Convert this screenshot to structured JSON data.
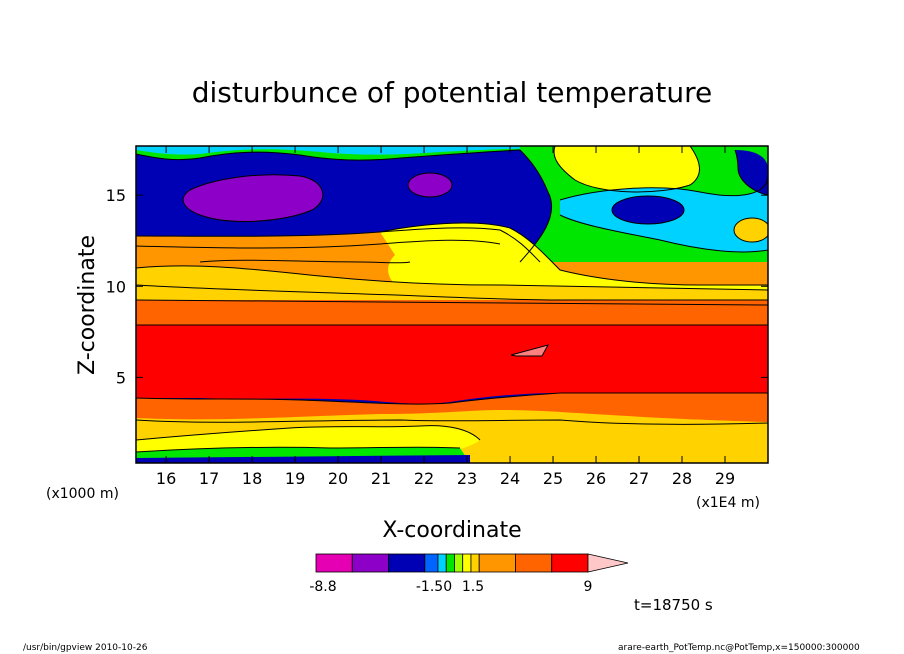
{
  "chart_data": {
    "type": "heatmap",
    "title": "disturbunce of potential temperature",
    "xlabel": "X-coordinate",
    "ylabel": "Z-coordinate",
    "xlim": [
      15.3,
      30.0
    ],
    "ylim": [
      0.3,
      17.7
    ],
    "x_ticks": [
      "16",
      "17",
      "18",
      "19",
      "20",
      "21",
      "22",
      "23",
      "24",
      "25",
      "26",
      "27",
      "28",
      "29"
    ],
    "x_tick_values": [
      16,
      17,
      18,
      19,
      20,
      21,
      22,
      23,
      24,
      25,
      26,
      27,
      28,
      29
    ],
    "y_ticks": [
      "5",
      "10",
      "15"
    ],
    "y_tick_values": [
      5,
      10,
      15
    ],
    "x_unit_label": "(x1E4 m)",
    "y_unit_label": "(x1000 m)",
    "time_label": "t=18750 s",
    "colorbar": {
      "colors": [
        "#e600b4",
        "#8c00c8",
        "#0000b4",
        "#0064ff",
        "#00d2ff",
        "#00e600",
        "#a0ff00",
        "#ffff00",
        "#ffd200",
        "#ff9600",
        "#ff6400",
        "#ff0000",
        "#ff8080",
        "#ffc8c8"
      ],
      "tick_labels": [
        "-8.8",
        "-1.50",
        "1.5",
        "9"
      ]
    },
    "layers": [
      {
        "z_from": 0.3,
        "z_to": 0.6,
        "level": "-1.5",
        "color": "#0000b4"
      },
      {
        "z_from": 0.6,
        "z_to": 1.2,
        "level": "-0.3",
        "color": "#00e600"
      },
      {
        "z_from": 1.2,
        "z_to": 2.0,
        "level": "0.6",
        "color": "#ffff00"
      },
      {
        "z_from": 2.0,
        "z_to": 2.8,
        "level": "1.5",
        "color": "#ffd200"
      },
      {
        "z_from": 2.8,
        "z_to": 4.0,
        "level": "3",
        "color": "#ff6400"
      },
      {
        "z_from": 4.0,
        "z_to": 7.8,
        "level": "6",
        "color": "#ff0000"
      },
      {
        "z_from": 7.8,
        "z_to": 9.4,
        "level": "3",
        "color": "#ff6400"
      },
      {
        "z_from": 9.4,
        "z_to": 10.8,
        "level": "1.5",
        "color": "#ffd200"
      },
      {
        "z_from": 10.8,
        "z_to": 12.5,
        "level": "3",
        "color": "#ff6400"
      },
      {
        "z_from": 12.5,
        "z_to": 13.0,
        "level": "0.6",
        "color": "#ffff00"
      },
      {
        "z_from": 13.0,
        "z_to": 17.1,
        "level": "-1.5",
        "color": "#0000b4"
      },
      {
        "z_from": 17.1,
        "z_to": 17.7,
        "level": "-0.3",
        "color": "#00e600"
      }
    ],
    "features": [
      {
        "name": "purple-low-left",
        "x": 19.0,
        "z": 15.2,
        "level": "-3",
        "color": "#8c00c8"
      },
      {
        "name": "purple-low-center",
        "x": 22.0,
        "z": 15.7,
        "level": "-3",
        "color": "#8c00c8"
      },
      {
        "name": "cyan-region-right",
        "x": 27.0,
        "z": 14.8,
        "level": "-0.6",
        "color": "#00d2ff"
      },
      {
        "name": "blue-low-right",
        "x": 27.3,
        "z": 14.7,
        "level": "-1.5",
        "color": "#0000b4"
      },
      {
        "name": "green-region-right",
        "x": 28.0,
        "z": 12.5,
        "level": "-0.3",
        "color": "#00e600"
      },
      {
        "name": "yellow-region-right",
        "x": 26.5,
        "z": 11.5,
        "level": "0.6",
        "color": "#ffff00"
      },
      {
        "name": "pink-max-center",
        "x": 24.4,
        "z": 6.6,
        "level": "9",
        "color": "#ff8080"
      }
    ]
  },
  "footer": {
    "program": "/usr/bin/gpview   2010-10-26",
    "source": "arare-earth_PotTemp.nc@PotTemp,x=150000:300000"
  }
}
